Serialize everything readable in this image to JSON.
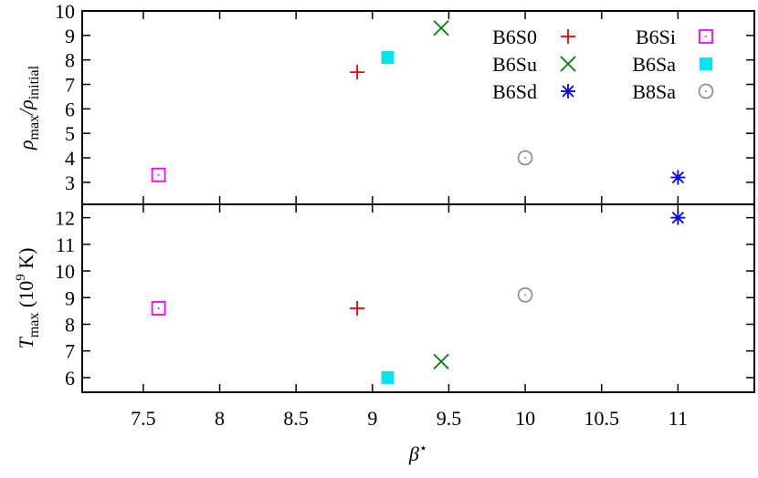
{
  "chart_data": [
    {
      "type": "scatter",
      "ylabel": [
        "ρ",
        "max",
        "/ρ",
        "initial"
      ],
      "xlim": [
        7.1,
        11.5
      ],
      "ylim": [
        2.1,
        10
      ],
      "yticks": [
        3,
        4,
        5,
        6,
        7,
        8,
        9,
        10
      ],
      "series": [
        {
          "name": "B6S0",
          "color": "#ff0000",
          "marker": "plus",
          "x": [
            8.9
          ],
          "values": [
            7.5
          ]
        },
        {
          "name": "B6Su",
          "color": "#008000",
          "marker": "cross",
          "x": [
            9.45
          ],
          "values": [
            9.3
          ]
        },
        {
          "name": "B6Sd",
          "color": "#0000ff",
          "marker": "asterisk",
          "x": [
            11.0
          ],
          "values": [
            3.2
          ]
        },
        {
          "name": "B6Si",
          "color": "#ff00ff",
          "marker": "square-dot",
          "x": [
            7.6
          ],
          "values": [
            3.3
          ]
        },
        {
          "name": "B6Sa",
          "color": "#00e5ee",
          "marker": "square-filled",
          "x": [
            9.1
          ],
          "values": [
            8.1
          ]
        },
        {
          "name": "B8Sa",
          "color": "#909090",
          "marker": "circle-dot",
          "x": [
            10.0
          ],
          "values": [
            4.0
          ]
        }
      ]
    },
    {
      "type": "scatter",
      "ylabel": [
        "T",
        "max",
        " (10",
        "9",
        " K)"
      ],
      "xlabel": [
        "β",
        "⋆"
      ],
      "xlim": [
        7.1,
        11.5
      ],
      "xticks": [
        7.5,
        8,
        8.5,
        9,
        9.5,
        10,
        10.5,
        11
      ],
      "ylim": [
        5.45,
        12.5
      ],
      "yticks": [
        6,
        7,
        8,
        9,
        10,
        11,
        12
      ],
      "series": [
        {
          "color": "#ff0000",
          "marker": "plus",
          "x": [
            8.9
          ],
          "values": [
            8.6
          ]
        },
        {
          "color": "#008000",
          "marker": "cross",
          "x": [
            9.45
          ],
          "values": [
            6.6
          ]
        },
        {
          "color": "#0000ff",
          "marker": "asterisk",
          "x": [
            11.0
          ],
          "values": [
            12.0
          ]
        },
        {
          "color": "#ff00ff",
          "marker": "square-dot",
          "x": [
            7.6
          ],
          "values": [
            8.6
          ]
        },
        {
          "color": "#00e5ee",
          "marker": "square-filled",
          "x": [
            9.1
          ],
          "values": [
            6.0
          ]
        },
        {
          "color": "#909090",
          "marker": "circle-dot",
          "x": [
            10.0
          ],
          "values": [
            9.1
          ]
        }
      ]
    }
  ]
}
